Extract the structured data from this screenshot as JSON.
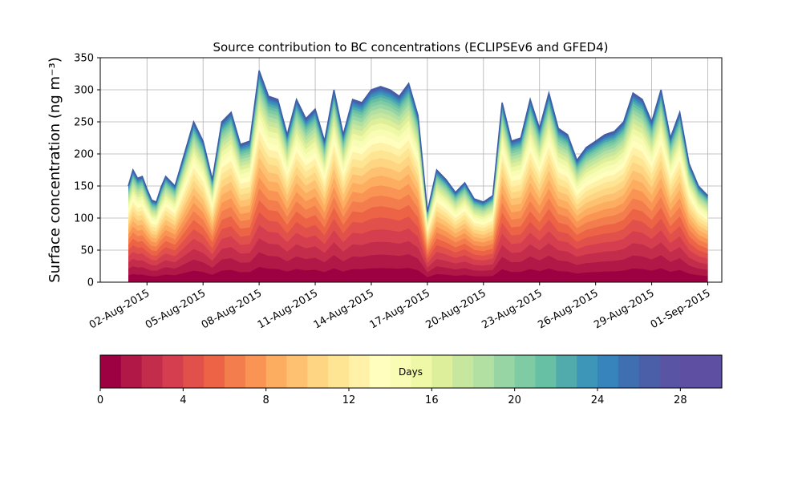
{
  "chart_data": {
    "type": "area",
    "title": "Source contribution to BC concentrations (ECLIPSEv6 and GFED4)",
    "ylabel": "Surface concentration (ng m⁻³)",
    "xlabel": "",
    "ylim": [
      0,
      350
    ],
    "xlim": [
      "2015-07-30T12:00",
      "2015-09-01T18:00"
    ],
    "y_ticks": [
      0,
      50,
      100,
      150,
      200,
      250,
      300,
      350
    ],
    "x_ticks": [
      {
        "date": "2015-08-02",
        "label": "02-Aug-2015"
      },
      {
        "date": "2015-08-05",
        "label": "05-Aug-2015"
      },
      {
        "date": "2015-08-08",
        "label": "08-Aug-2015"
      },
      {
        "date": "2015-08-11",
        "label": "11-Aug-2015"
      },
      {
        "date": "2015-08-14",
        "label": "14-Aug-2015"
      },
      {
        "date": "2015-08-17",
        "label": "17-Aug-2015"
      },
      {
        "date": "2015-08-20",
        "label": "20-Aug-2015"
      },
      {
        "date": "2015-08-23",
        "label": "23-Aug-2015"
      },
      {
        "date": "2015-08-26",
        "label": "26-Aug-2015"
      },
      {
        "date": "2015-08-29",
        "label": "29-Aug-2015"
      },
      {
        "date": "2015-09-01",
        "label": "01-Sep-2015"
      }
    ],
    "grid": true,
    "series_description": "Stacked contributions by source age (days 0-30)",
    "total": {
      "x": [
        "2015-08-01T00:00",
        "2015-08-01T06:00",
        "2015-08-01T12:00",
        "2015-08-01T18:00",
        "2015-08-02T00:00",
        "2015-08-02T06:00",
        "2015-08-02T12:00",
        "2015-08-02T18:00",
        "2015-08-03T00:00",
        "2015-08-03T12:00",
        "2015-08-04T00:00",
        "2015-08-04T12:00",
        "2015-08-05T00:00",
        "2015-08-05T12:00",
        "2015-08-06T00:00",
        "2015-08-06T12:00",
        "2015-08-07T00:00",
        "2015-08-07T12:00",
        "2015-08-08T00:00",
        "2015-08-08T12:00",
        "2015-08-09T00:00",
        "2015-08-09T12:00",
        "2015-08-10T00:00",
        "2015-08-10T12:00",
        "2015-08-11T00:00",
        "2015-08-11T12:00",
        "2015-08-12T00:00",
        "2015-08-12T12:00",
        "2015-08-13T00:00",
        "2015-08-13T12:00",
        "2015-08-14T00:00",
        "2015-08-14T12:00",
        "2015-08-15T00:00",
        "2015-08-15T12:00",
        "2015-08-16T00:00",
        "2015-08-16T12:00",
        "2015-08-17T00:00",
        "2015-08-17T12:00",
        "2015-08-18T00:00",
        "2015-08-18T12:00",
        "2015-08-19T00:00",
        "2015-08-19T12:00",
        "2015-08-20T00:00",
        "2015-08-20T12:00",
        "2015-08-21T00:00",
        "2015-08-21T12:00",
        "2015-08-22T00:00",
        "2015-08-22T12:00",
        "2015-08-23T00:00",
        "2015-08-23T12:00",
        "2015-08-24T00:00",
        "2015-08-24T12:00",
        "2015-08-25T00:00",
        "2015-08-25T12:00",
        "2015-08-26T00:00",
        "2015-08-26T12:00",
        "2015-08-27T00:00",
        "2015-08-27T12:00",
        "2015-08-28T00:00",
        "2015-08-28T12:00",
        "2015-08-29T00:00",
        "2015-08-29T12:00",
        "2015-08-30T00:00",
        "2015-08-30T12:00",
        "2015-08-31T00:00",
        "2015-08-31T12:00",
        "2015-09-01T00:00"
      ],
      "y": [
        150,
        175,
        162,
        165,
        145,
        128,
        125,
        148,
        165,
        150,
        200,
        250,
        220,
        160,
        250,
        265,
        215,
        220,
        330,
        290,
        285,
        230,
        285,
        255,
        270,
        220,
        300,
        230,
        285,
        280,
        300,
        305,
        300,
        290,
        310,
        260,
        110,
        175,
        160,
        140,
        155,
        130,
        125,
        135,
        280,
        220,
        225,
        285,
        240,
        295,
        240,
        230,
        190,
        210,
        220,
        230,
        235,
        250,
        295,
        285,
        250,
        300,
        225,
        265,
        185,
        150,
        135
      ]
    },
    "colorbar": {
      "label": "Days",
      "min": 0,
      "max": 30,
      "ticks": [
        0,
        4,
        8,
        12,
        16,
        20,
        24,
        28
      ],
      "bins": 30,
      "colors": [
        "#9e0142",
        "#b11747",
        "#c32c4b",
        "#d53e4f",
        "#e1504a",
        "#ec6445",
        "#f47d4d",
        "#f99455",
        "#fdad60",
        "#fdc171",
        "#fed683",
        "#fee593",
        "#fff1a8",
        "#fffebe",
        "#f8fcb4",
        "#eef8a6",
        "#deef9b",
        "#c7e79e",
        "#b2dfa2",
        "#98d5a4",
        "#7fcba4",
        "#67bfa4",
        "#51abad",
        "#3d96b7",
        "#3783bb",
        "#3f6fb1",
        "#4b5ea8",
        "#5a54a4",
        "#5e4fa2",
        "#5e4fa2"
      ]
    }
  }
}
